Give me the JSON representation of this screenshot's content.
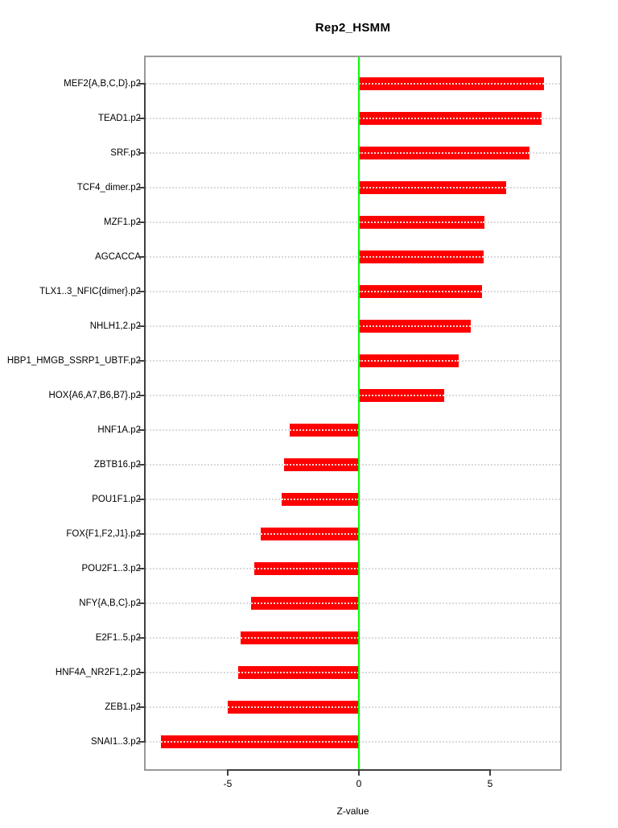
{
  "chart_data": {
    "type": "bar",
    "orientation": "horizontal",
    "title": "Rep2_HSMM",
    "xlabel": "Z-value",
    "xticks": [
      -5,
      0,
      5
    ],
    "xlim": [
      -8.1,
      7.7
    ],
    "grid": "dotted horizontal line at each category, full plot width",
    "legend": "none",
    "bar_color": "#ff0000",
    "zero_line_color": "#00ff00",
    "grid_color": "#d9d9d9",
    "axis_color": "#404040",
    "box_color": "#999999",
    "categories": [
      "MEF2{A,B,C,D}.p2",
      "TEAD1.p2",
      "SRF.p3",
      "TCF4_dimer.p2",
      "MZF1.p2",
      "AGCACCA",
      "TLX1..3_NFIC{dimer}.p2",
      "NHLH1,2.p2",
      "HBP1_HMGB_SSRP1_UBTF.p2",
      "HOX{A6,A7,B6,B7}.p2",
      "HNF1A.p2",
      "ZBTB16.p2",
      "POU1F1.p2",
      "FOX{F1,F2,J1}.p2",
      "POU2F1..3.p2",
      "NFY{A,B,C}.p2",
      "E2F1..5.p2",
      "HNF4A_NR2F1,2.p2",
      "ZEB1.p2",
      "SNAI1..3.p2"
    ],
    "values": [
      7.05,
      6.95,
      6.5,
      5.6,
      4.8,
      4.75,
      4.7,
      4.25,
      3.8,
      3.25,
      -2.65,
      -2.85,
      -2.95,
      -3.75,
      -4.0,
      -4.1,
      -4.5,
      -4.6,
      -5.0,
      -7.55
    ]
  }
}
